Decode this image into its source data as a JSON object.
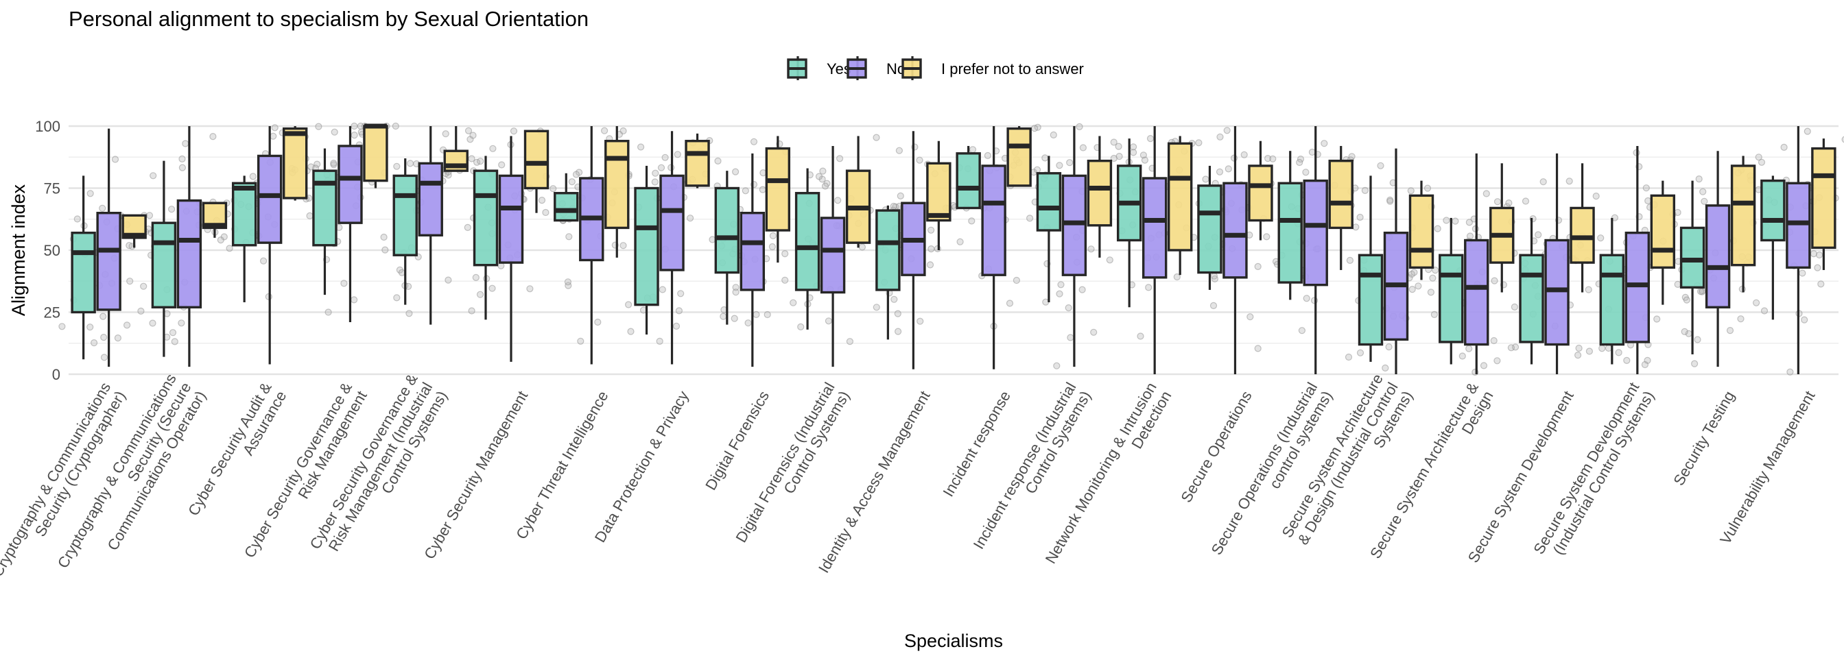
{
  "chart_data": {
    "type": "boxplot",
    "title": "Personal alignment to specialism by Sexual Orientation",
    "xlabel": "Specialisms",
    "ylabel": "Alignment index",
    "ylim": [
      0,
      100
    ],
    "yticks": [
      0,
      25,
      50,
      75,
      100
    ],
    "grid": true,
    "legend": {
      "position": "top-center",
      "entries": [
        {
          "name": "Yes",
          "color": "#7fd6c0"
        },
        {
          "name": "No",
          "color": "#a596ef"
        },
        {
          "name": "I prefer not to answer",
          "color": "#f5dc87"
        }
      ]
    },
    "categories": [
      "Cryptography & Communications Security (Cryptographer)",
      "Cryptography & Communications Security (Secure Communications Operator)",
      "Cyber Security Audit & Assurance",
      "Cyber Security Governance & Risk Management",
      "Cyber Security Governance & Risk Management (Industrial Control Systems)",
      "Cyber Security Management",
      "Cyber Threat Intelligence",
      "Data Protection & Privacy",
      "Digital Forensics",
      "Digital Forensics (Industrial Control Systems)",
      "Identity & Access Management",
      "Incident response",
      "Incident response (Industrial Control Systems)",
      "Network Monitoring & Intrusion Detection",
      "Secure Operations",
      "Secure Operations (Industrial control systems)",
      "Secure System Architecture & Design (Industrial Control Systems)",
      "Secure System Architecture & Design",
      "Secure System Development",
      "Secure System Development (Industrial Control Systems)",
      "Security Testing",
      "Vulnerability Management"
    ],
    "category_label_lines": [
      [
        "Cryptography & Communications",
        "Security (Cryptographer)"
      ],
      [
        "Cryptography & Communications",
        "Security (Secure",
        "Communications Operator)"
      ],
      [
        "Cyber Security Audit &",
        "Assurance"
      ],
      [
        "Cyber Security Governance &",
        "Risk Management"
      ],
      [
        "Cyber Security Governance &",
        "Risk Management (Industrial",
        "Control Systems)"
      ],
      [
        "Cyber Security Management"
      ],
      [
        "Cyber Threat Intelligence"
      ],
      [
        "Data Protection & Privacy"
      ],
      [
        "Digital Forensics"
      ],
      [
        "Digital Forensics (Industrial",
        "Control Systems)"
      ],
      [
        "Identity & Access Management"
      ],
      [
        "Incident response"
      ],
      [
        "Incident response (Industrial",
        "Control Systems)"
      ],
      [
        "Network Monitoring & Intrusion",
        "Detection"
      ],
      [
        "Secure Operations"
      ],
      [
        "Secure Operations (Industrial",
        "control systems)"
      ],
      [
        "Secure System Architecture",
        "& Design (Industrial Control",
        "Systems)"
      ],
      [
        "Secure System Architecture &",
        "Design"
      ],
      [
        "Secure System Development"
      ],
      [
        "Secure System Development",
        "(Industrial Control Systems)"
      ],
      [
        "Security Testing"
      ],
      [
        "Vulnerability Management"
      ]
    ],
    "series": [
      {
        "name": "Yes",
        "stats": [
          {
            "lower": 6,
            "q1": 25,
            "median": 49,
            "q3": 57,
            "upper": 80
          },
          {
            "lower": 7,
            "q1": 27,
            "median": 53,
            "q3": 61,
            "upper": 86
          },
          {
            "lower": 29,
            "q1": 52,
            "median": 75,
            "q3": 77,
            "upper": 80
          },
          {
            "lower": 32,
            "q1": 52,
            "median": 77,
            "q3": 82,
            "upper": 91
          },
          {
            "lower": 28,
            "q1": 48,
            "median": 72,
            "q3": 80,
            "upper": 87
          },
          {
            "lower": 22,
            "q1": 44,
            "median": 72,
            "q3": 82,
            "upper": 88
          },
          {
            "lower": 62,
            "q1": 62,
            "median": 66,
            "q3": 73,
            "upper": 81
          },
          {
            "lower": 16,
            "q1": 28,
            "median": 59,
            "q3": 75,
            "upper": 84
          },
          {
            "lower": 20,
            "q1": 41,
            "median": 55,
            "q3": 75,
            "upper": 82
          },
          {
            "lower": 18,
            "q1": 34,
            "median": 51,
            "q3": 73,
            "upper": 83
          },
          {
            "lower": 14,
            "q1": 34,
            "median": 53,
            "q3": 66,
            "upper": 68
          },
          {
            "lower": 67,
            "q1": 67,
            "median": 75,
            "q3": 89,
            "upper": 92
          },
          {
            "lower": 29,
            "q1": 58,
            "median": 67,
            "q3": 81,
            "upper": 88
          },
          {
            "lower": 27,
            "q1": 54,
            "median": 69,
            "q3": 84,
            "upper": 95
          },
          {
            "lower": 34,
            "q1": 41,
            "median": 65,
            "q3": 76,
            "upper": 84
          },
          {
            "lower": 30,
            "q1": 37,
            "median": 62,
            "q3": 77,
            "upper": 90
          },
          {
            "lower": 5,
            "q1": 12,
            "median": 40,
            "q3": 48,
            "upper": 80
          },
          {
            "lower": 4,
            "q1": 13,
            "median": 40,
            "q3": 48,
            "upper": 63
          },
          {
            "lower": 4,
            "q1": 13,
            "median": 40,
            "q3": 48,
            "upper": 63
          },
          {
            "lower": 4,
            "q1": 12,
            "median": 40,
            "q3": 48,
            "upper": 63
          },
          {
            "lower": 8,
            "q1": 35,
            "median": 46,
            "q3": 59,
            "upper": 78
          },
          {
            "lower": 22,
            "q1": 54,
            "median": 62,
            "q3": 78,
            "upper": 80
          }
        ]
      },
      {
        "name": "No",
        "stats": [
          {
            "lower": 3,
            "q1": 26,
            "median": 50,
            "q3": 65,
            "upper": 99
          },
          {
            "lower": 3,
            "q1": 27,
            "median": 54,
            "q3": 70,
            "upper": 100
          },
          {
            "lower": 4,
            "q1": 53,
            "median": 72,
            "q3": 88,
            "upper": 100
          },
          {
            "lower": 21,
            "q1": 61,
            "median": 79,
            "q3": 92,
            "upper": 100
          },
          {
            "lower": 20,
            "q1": 56,
            "median": 77,
            "q3": 85,
            "upper": 100
          },
          {
            "lower": 5,
            "q1": 45,
            "median": 67,
            "q3": 80,
            "upper": 96
          },
          {
            "lower": 4,
            "q1": 46,
            "median": 63,
            "q3": 79,
            "upper": 100
          },
          {
            "lower": 4,
            "q1": 42,
            "median": 66,
            "q3": 80,
            "upper": 98
          },
          {
            "lower": 3,
            "q1": 34,
            "median": 53,
            "q3": 65,
            "upper": 89
          },
          {
            "lower": 3,
            "q1": 33,
            "median": 50,
            "q3": 63,
            "upper": 92
          },
          {
            "lower": 2,
            "q1": 40,
            "median": 54,
            "q3": 69,
            "upper": 98
          },
          {
            "lower": 2,
            "q1": 40,
            "median": 69,
            "q3": 84,
            "upper": 100
          },
          {
            "lower": 3,
            "q1": 40,
            "median": 61,
            "q3": 80,
            "upper": 100
          },
          {
            "lower": 0,
            "q1": 39,
            "median": 62,
            "q3": 79,
            "upper": 100
          },
          {
            "lower": 0,
            "q1": 39,
            "median": 56,
            "q3": 77,
            "upper": 100
          },
          {
            "lower": 0,
            "q1": 36,
            "median": 60,
            "q3": 78,
            "upper": 100
          },
          {
            "lower": 0,
            "q1": 14,
            "median": 36,
            "q3": 57,
            "upper": 91
          },
          {
            "lower": 0,
            "q1": 12,
            "median": 35,
            "q3": 54,
            "upper": 89
          },
          {
            "lower": 0,
            "q1": 12,
            "median": 34,
            "q3": 54,
            "upper": 89
          },
          {
            "lower": 0,
            "q1": 13,
            "median": 36,
            "q3": 57,
            "upper": 92
          },
          {
            "lower": 3,
            "q1": 27,
            "median": 43,
            "q3": 68,
            "upper": 90
          },
          {
            "lower": 0,
            "q1": 43,
            "median": 61,
            "q3": 77,
            "upper": 100
          }
        ]
      },
      {
        "name": "I prefer not to answer",
        "stats": [
          {
            "lower": 51,
            "q1": 55,
            "median": 56,
            "q3": 64,
            "upper": 64
          },
          {
            "lower": 55,
            "q1": 59,
            "median": 60,
            "q3": 69,
            "upper": 69
          },
          {
            "lower": 70,
            "q1": 71,
            "median": 97,
            "q3": 99,
            "upper": 100
          },
          {
            "lower": 75,
            "q1": 78,
            "median": 100,
            "q3": 100,
            "upper": 100
          },
          {
            "lower": 82,
            "q1": 82,
            "median": 84,
            "q3": 90,
            "upper": 100
          },
          {
            "lower": 65,
            "q1": 75,
            "median": 85,
            "q3": 98,
            "upper": 98
          },
          {
            "lower": 47,
            "q1": 59,
            "median": 87,
            "q3": 94,
            "upper": 100
          },
          {
            "lower": 75,
            "q1": 76,
            "median": 89,
            "q3": 94,
            "upper": 97
          },
          {
            "lower": 45,
            "q1": 58,
            "median": 78,
            "q3": 91,
            "upper": 96
          },
          {
            "lower": 51,
            "q1": 53,
            "median": 67,
            "q3": 82,
            "upper": 96
          },
          {
            "lower": 50,
            "q1": 62,
            "median": 64,
            "q3": 85,
            "upper": 94
          },
          {
            "lower": 76,
            "q1": 76,
            "median": 92,
            "q3": 99,
            "upper": 100
          },
          {
            "lower": 47,
            "q1": 60,
            "median": 75,
            "q3": 86,
            "upper": 96
          },
          {
            "lower": 40,
            "q1": 50,
            "median": 79,
            "q3": 93,
            "upper": 96
          },
          {
            "lower": 54,
            "q1": 62,
            "median": 76,
            "q3": 84,
            "upper": 94
          },
          {
            "lower": 42,
            "q1": 59,
            "median": 69,
            "q3": 86,
            "upper": 92
          },
          {
            "lower": 38,
            "q1": 43,
            "median": 50,
            "q3": 72,
            "upper": 78
          },
          {
            "lower": 33,
            "q1": 45,
            "median": 56,
            "q3": 67,
            "upper": 85
          },
          {
            "lower": 33,
            "q1": 45,
            "median": 55,
            "q3": 67,
            "upper": 85
          },
          {
            "lower": 28,
            "q1": 43,
            "median": 50,
            "q3": 72,
            "upper": 78
          },
          {
            "lower": 33,
            "q1": 44,
            "median": 69,
            "q3": 84,
            "upper": 88
          },
          {
            "lower": 42,
            "q1": 51,
            "median": 80,
            "q3": 91,
            "upper": 95
          }
        ]
      }
    ]
  }
}
